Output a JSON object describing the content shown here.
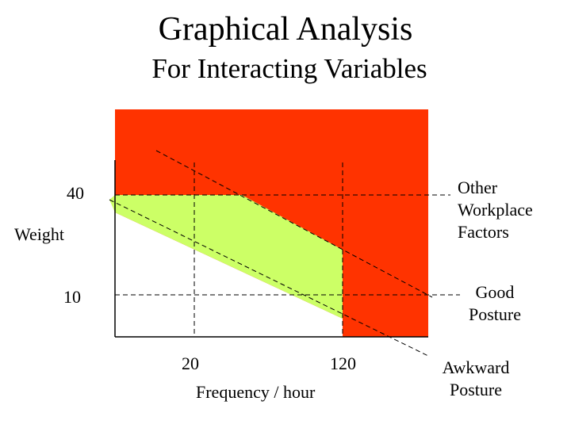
{
  "title": "Graphical Analysis",
  "subtitle": "For Interacting Variables",
  "y_axis": {
    "label": "Weight",
    "ticks": [
      "40",
      "10"
    ]
  },
  "x_axis": {
    "label": "Frequency / hour",
    "ticks": [
      "20",
      "120"
    ]
  },
  "lines": {
    "other_factors": {
      "label_lines": [
        "Other",
        "Workplace",
        "Factors"
      ]
    },
    "good_posture": {
      "label_lines": [
        "Good",
        "Posture"
      ]
    },
    "awkward_posture": {
      "label_lines": [
        "Awkward",
        "Posture"
      ]
    }
  },
  "colors": {
    "unsafe_region": "#ff3300",
    "caution_region": "#ccff66",
    "safe_region": "#ffffff"
  }
}
